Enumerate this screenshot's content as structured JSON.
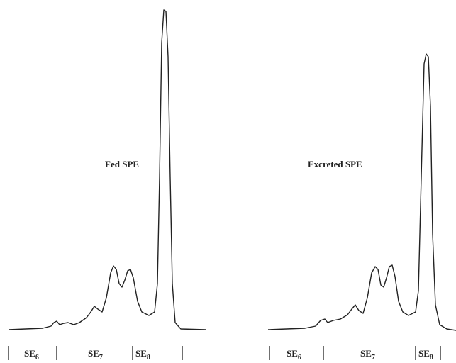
{
  "panels": [
    {
      "title": "Fed SPE",
      "regions": [
        {
          "base": "SE",
          "sub": "6"
        },
        {
          "base": "SE",
          "sub": "7"
        },
        {
          "base": "SE",
          "sub": "8"
        }
      ]
    },
    {
      "title": "Excreted SPE",
      "regions": [
        {
          "base": "SE",
          "sub": "6"
        },
        {
          "base": "SE",
          "sub": "7"
        },
        {
          "base": "SE",
          "sub": "8"
        }
      ]
    }
  ]
}
